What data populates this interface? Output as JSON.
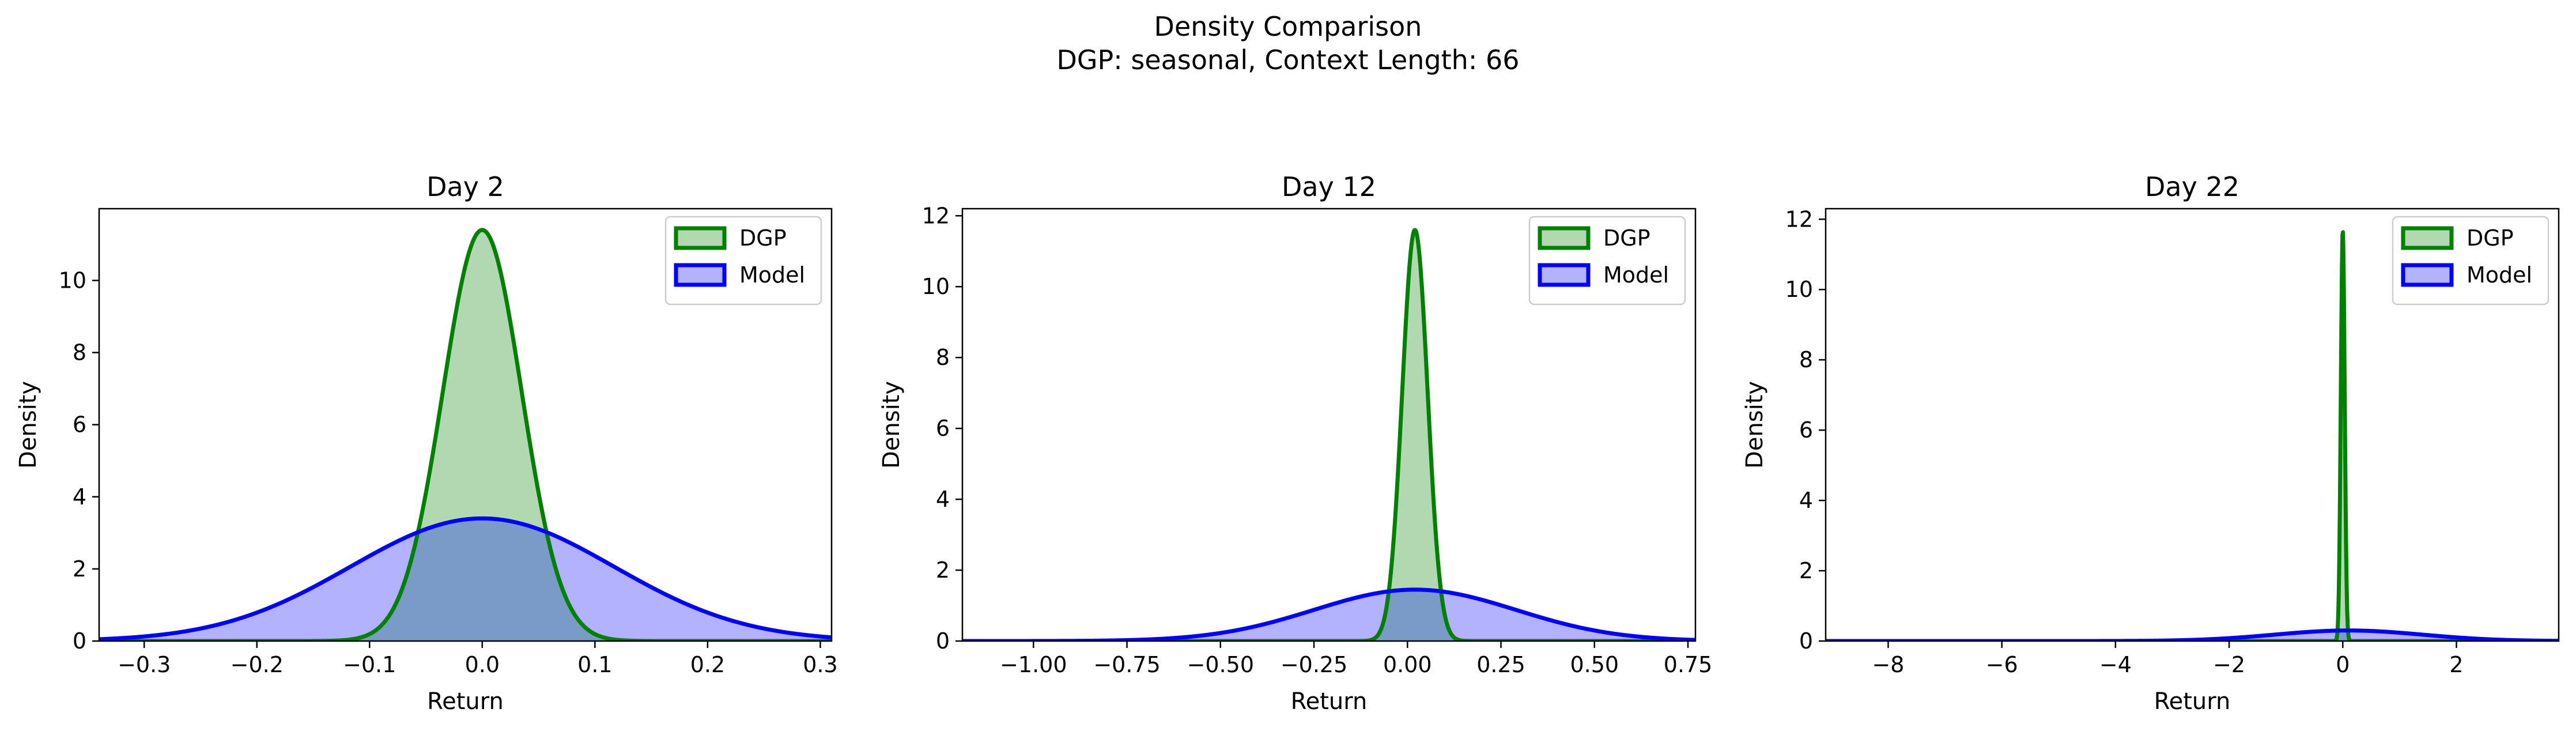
{
  "figure": {
    "title_line1": "Density Comparison",
    "title_line2": "DGP: seasonal, Context Length: 66"
  },
  "colors": {
    "dgp_line": "#008000",
    "dgp_fill": "#b2d8b2",
    "model_line": "#0000ff",
    "model_fill": "#b2b2ff",
    "overlap_fill": "#7a9ac8"
  },
  "chart_data": [
    {
      "type": "area",
      "title": "Day 2",
      "xlabel": "Return",
      "ylabel": "Density",
      "xlim": [
        -0.34,
        0.31
      ],
      "ylim": [
        0,
        11.99
      ],
      "xticks": [
        -0.3,
        -0.2,
        -0.1,
        0.0,
        0.1,
        0.2,
        0.3
      ],
      "xtick_labels": [
        "−0.3",
        "−0.2",
        "−0.1",
        "0.0",
        "0.1",
        "0.2",
        "0.3"
      ],
      "yticks": [
        0,
        2,
        4,
        6,
        8,
        10
      ],
      "ytick_labels": [
        "0",
        "2",
        "4",
        "6",
        "8",
        "10"
      ],
      "legend": "top-right",
      "series": [
        {
          "name": "DGP",
          "distribution": "normal",
          "mean": 0.0,
          "std": 0.035,
          "peak_density": 11.4
        },
        {
          "name": "Model",
          "distribution": "normal",
          "mean": 0.0,
          "std": 0.117,
          "peak_density": 3.4
        }
      ]
    },
    {
      "type": "area",
      "title": "Day 12",
      "xlabel": "Return",
      "ylabel": "Density",
      "xlim": [
        -1.19,
        0.77
      ],
      "ylim": [
        0,
        12.2
      ],
      "xticks": [
        -1.0,
        -0.75,
        -0.5,
        -0.25,
        0.0,
        0.25,
        0.5,
        0.75
      ],
      "xtick_labels": [
        "−1.00",
        "−0.75",
        "−0.50",
        "−0.25",
        "0.00",
        "0.25",
        "0.50",
        "0.75"
      ],
      "yticks": [
        0,
        2,
        4,
        6,
        8,
        10,
        12
      ],
      "ytick_labels": [
        "0",
        "2",
        "4",
        "6",
        "8",
        "10",
        "12"
      ],
      "legend": "top-right",
      "series": [
        {
          "name": "DGP",
          "distribution": "normal",
          "mean": 0.02,
          "std": 0.034,
          "peak_density": 11.6
        },
        {
          "name": "Model",
          "distribution": "normal",
          "mean": 0.02,
          "std": 0.27,
          "peak_density": 1.45
        }
      ]
    },
    {
      "type": "area",
      "title": "Day 22",
      "xlabel": "Return",
      "ylabel": "Density",
      "xlim": [
        -9.1,
        3.8
      ],
      "ylim": [
        0,
        12.3
      ],
      "xticks": [
        -8,
        -6,
        -4,
        -2,
        0,
        2
      ],
      "xtick_labels": [
        "−8",
        "−6",
        "−4",
        "−2",
        "0",
        "2"
      ],
      "yticks": [
        0,
        2,
        4,
        6,
        8,
        10,
        12
      ],
      "ytick_labels": [
        "0",
        "2",
        "4",
        "6",
        "8",
        "10",
        "12"
      ],
      "legend": "top-right",
      "series": [
        {
          "name": "DGP",
          "distribution": "normal",
          "mean": 0.0,
          "std": 0.034,
          "peak_density": 11.7
        },
        {
          "name": "Model",
          "distribution": "normal",
          "mean": 0.1,
          "std": 1.3,
          "peak_density": 0.3
        }
      ]
    }
  ]
}
